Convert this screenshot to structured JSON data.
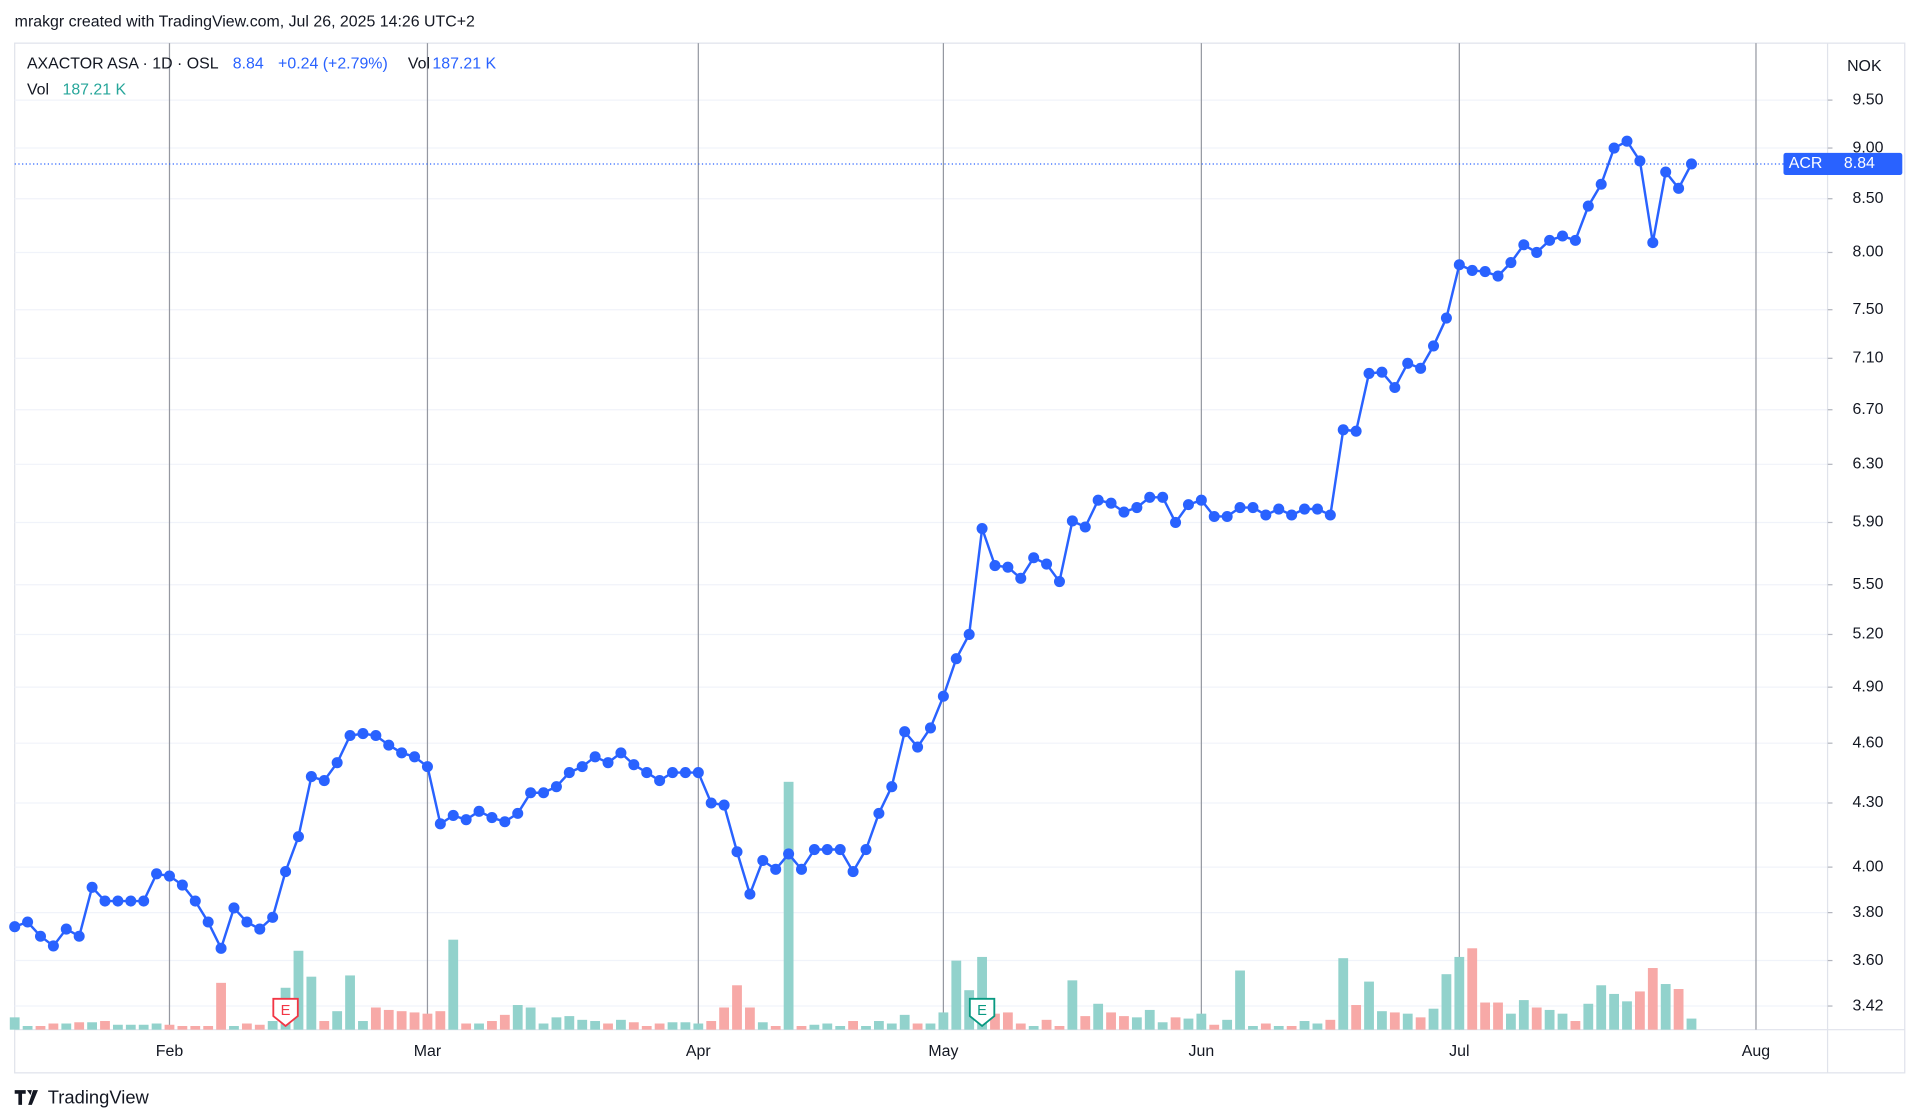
{
  "header": "mrakgr created with TradingView.com, Jul 26, 2025 14:26 UTC+2",
  "footer": "TradingView",
  "chart_data": {
    "type": "line",
    "legend": {
      "symbol": "AXACTOR ASA · 1D · OSL",
      "last": 8.84,
      "change": "+0.24 (+2.79%)",
      "vol_label": "Vol",
      "vol": "187.21 K"
    },
    "currency": "NOK",
    "yscale": "log",
    "ylim": [
      3.33,
      10.13
    ],
    "yticks": [
      3.42,
      {
        "value": 3.6,
        "label": "3.60"
      },
      {
        "value": 3.8,
        "label": "3.80"
      },
      {
        "value": 4,
        "label": "4.00"
      },
      {
        "value": 4.3,
        "label": "4.30"
      },
      {
        "value": 4.6,
        "label": "4.60"
      },
      {
        "value": 4.9,
        "label": "4.90"
      },
      {
        "value": 5.2,
        "label": "5.20"
      },
      {
        "value": 5.5,
        "label": "5.50"
      },
      {
        "value": 5.9,
        "label": "5.90"
      },
      {
        "value": 6.3,
        "label": "6.30"
      },
      {
        "value": 6.7,
        "label": "6.70"
      },
      {
        "value": 7.1,
        "label": "7.10"
      },
      {
        "value": 7.5,
        "label": "7.50"
      },
      {
        "value": 8,
        "label": "8.00"
      },
      {
        "value": 8.5,
        "label": "8.50"
      },
      {
        "value": 9,
        "label": "9.00"
      },
      {
        "value": 9.5,
        "label": "9.50"
      }
    ],
    "grid": true,
    "categories": [
      null,
      null,
      null,
      null,
      null,
      null,
      null,
      null,
      null,
      null,
      null,
      null,
      "Feb",
      null,
      null,
      null,
      null,
      null,
      null,
      null,
      null,
      null,
      null,
      null,
      null,
      null,
      null,
      null,
      null,
      null,
      null,
      null,
      "Mar",
      null,
      null,
      null,
      null,
      null,
      null,
      null,
      null,
      null,
      null,
      null,
      null,
      null,
      null,
      null,
      null,
      null,
      null,
      null,
      null,
      "Apr",
      null,
      null,
      null,
      null,
      null,
      null,
      null,
      null,
      null,
      null,
      null,
      null,
      null,
      null,
      null,
      null,
      null,
      null,
      "May",
      null,
      null,
      null,
      null,
      null,
      null,
      null,
      null,
      null,
      null,
      null,
      null,
      null,
      null,
      null,
      null,
      null,
      null,
      null,
      "Jun",
      null,
      null,
      null,
      null,
      null,
      null,
      null,
      null,
      null,
      null,
      null,
      null,
      null,
      null,
      null,
      null,
      null,
      null,
      null,
      "Jul",
      null,
      null,
      null,
      null,
      null,
      null,
      null,
      null,
      null,
      null,
      null,
      null,
      null,
      null,
      null,
      null,
      null,
      null,
      null,
      null,
      null,
      null,
      "Aug",
      null,
      null,
      null,
      null,
      null
    ],
    "series": [
      {
        "name": "ACR",
        "color": "#2962ff",
        "values": [
          3.74,
          3.76,
          3.7,
          3.66,
          3.73,
          3.7,
          3.91,
          3.85,
          3.85,
          3.85,
          3.85,
          3.97,
          3.96,
          3.92,
          3.85,
          3.76,
          3.65,
          3.82,
          3.76,
          3.73,
          3.78,
          3.98,
          4.14,
          4.43,
          4.41,
          4.5,
          4.64,
          4.65,
          4.64,
          4.59,
          4.55,
          4.53,
          4.48,
          4.2,
          4.24,
          4.22,
          4.26,
          4.23,
          4.21,
          4.25,
          4.35,
          4.35,
          4.38,
          4.45,
          4.48,
          4.53,
          4.5,
          4.55,
          4.49,
          4.45,
          4.41,
          4.45,
          4.45,
          4.45,
          4.3,
          4.29,
          4.07,
          3.88,
          4.03,
          3.99,
          4.06,
          3.99,
          4.08,
          4.08,
          4.08,
          3.98,
          4.08,
          4.25,
          4.38,
          4.66,
          4.58,
          4.68,
          4.85,
          5.06,
          5.2,
          5.86,
          5.62,
          5.61,
          5.54,
          5.67,
          5.63,
          5.52,
          5.91,
          5.87,
          6.05,
          6.03,
          5.97,
          6.0,
          6.07,
          6.07,
          5.9,
          6.02,
          6.05,
          5.94,
          5.94,
          6.0,
          6.0,
          5.95,
          5.99,
          5.95,
          5.99,
          5.99,
          5.95,
          6.55,
          6.54,
          6.98,
          6.99,
          6.87,
          7.06,
          7.02,
          7.2,
          7.43,
          7.89,
          7.84,
          7.83,
          7.79,
          7.91,
          8.07,
          8.0,
          8.11,
          8.15,
          8.11,
          8.43,
          8.64,
          9.0,
          9.07,
          8.87,
          8.09,
          8.76,
          8.6,
          8.84,
          null,
          null,
          null,
          null,
          null,
          null,
          null,
          null,
          null,
          null
        ]
      }
    ],
    "volume": {
      "name": "Vol",
      "up_color": "#92d2cc",
      "down_color": "#f7a9a7",
      "values": [
        208,
        62,
        62,
        104,
        104,
        125,
        125,
        146,
        83,
        83,
        83,
        104,
        83,
        62,
        62,
        62,
        790,
        62,
        104,
        83,
        146,
        707,
        1331,
        894,
        146,
        312,
        915,
        146,
        374,
        333,
        312,
        291,
        270,
        312,
        1518,
        104,
        104,
        146,
        250,
        416,
        374,
        104,
        208,
        229,
        166,
        146,
        104,
        166,
        125,
        62,
        104,
        125,
        125,
        104,
        146,
        374,
        749,
        374,
        125,
        62,
        4181,
        62,
        83,
        104,
        62,
        146,
        62,
        146,
        104,
        250,
        104,
        104,
        291,
        1165,
        666,
        1227,
        270,
        291,
        104,
        62,
        166,
        62,
        832,
        229,
        437,
        291,
        229,
        208,
        333,
        125,
        208,
        187,
        270,
        83,
        166,
        998,
        62,
        104,
        62,
        62,
        146,
        104,
        166,
        1206,
        416,
        811,
        312,
        291,
        270,
        208,
        354,
        936,
        1227,
        1373,
        458,
        458,
        270,
        499,
        374,
        333,
        270,
        146,
        437,
        749,
        603,
        478,
        645,
        1040,
        770,
        686,
        187.21,
        null,
        null,
        null,
        null,
        null,
        null,
        null,
        null,
        null,
        null
      ]
    },
    "events": [
      {
        "text": "E",
        "at": 21,
        "color": "#f23645"
      },
      {
        "text": "E",
        "at": 75,
        "color": "#089981"
      }
    ]
  }
}
